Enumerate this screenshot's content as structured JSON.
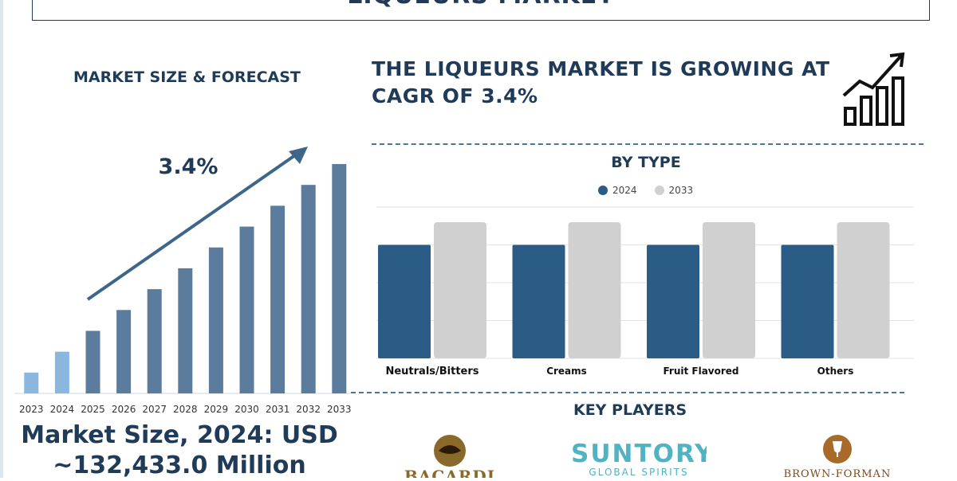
{
  "header": {
    "title": "LIQUEURS MARKET"
  },
  "left_panel": {
    "title": "MARKET SIZE & FORECAST",
    "cagr_label": "3.4%",
    "market_size_line1": "Market Size, 2024: USD",
    "market_size_line2": "~132,433.0 Million"
  },
  "right_panel": {
    "headline": "THE LIQUEURS MARKET IS GROWING AT CAGR OF 3.4%",
    "by_type_title": "BY TYPE",
    "key_players_title": "KEY PLAYERS"
  },
  "key_players": [
    {
      "name": "BACARDI",
      "color": "#8a6a2a"
    },
    {
      "name": "SUNTORY",
      "sub": "GLOBAL SPIRITS",
      "color": "#4fb3c4"
    },
    {
      "name": "BROWN-FORMAN",
      "color": "#7a4b1e"
    }
  ],
  "colors": {
    "primary": "#1f3b57",
    "bar_2024": "#2b5c86",
    "bar_2033": "#d0d0d0"
  },
  "chart_data": [
    {
      "type": "bar",
      "title": "",
      "categories": [
        "2023",
        "2024",
        "2025",
        "2026",
        "2027",
        "2028",
        "2029",
        "2030",
        "2031",
        "2032",
        "2033"
      ],
      "values": [
        1,
        2,
        3,
        4,
        5,
        6,
        7,
        8,
        9,
        10,
        11
      ],
      "ylim": [
        0,
        11
      ],
      "grid": false,
      "annotation": "3.4%"
    },
    {
      "type": "bar",
      "title": "BY TYPE",
      "categories": [
        "Neutrals/Bitters",
        "Creams",
        "Fruit Flavored",
        "Others"
      ],
      "series": [
        {
          "name": "2024",
          "values": [
            3,
            3,
            3,
            3
          ],
          "color": "#2b5c86"
        },
        {
          "name": "2033",
          "values": [
            3.6,
            3.6,
            3.6,
            3.6
          ],
          "color": "#d0d0d0"
        }
      ],
      "ylim": [
        0,
        4
      ],
      "grid": true,
      "legend": "top-center"
    }
  ]
}
